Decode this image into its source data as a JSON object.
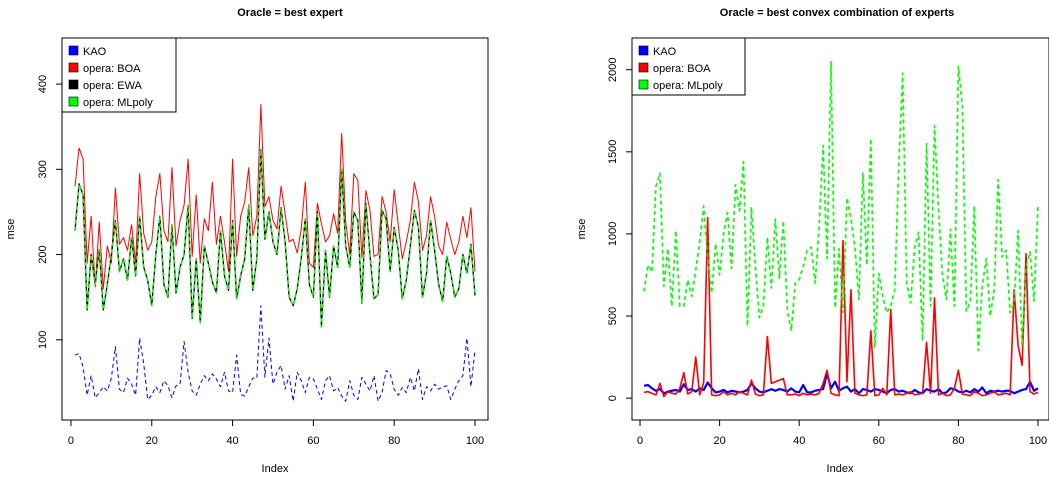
{
  "chart_data": [
    {
      "type": "line",
      "title": "Oracle = best expert",
      "xlabel": "Index",
      "ylabel": "mse",
      "xticks": [
        "0",
        "20",
        "40",
        "60",
        "80",
        "100"
      ],
      "yticks": [
        "100",
        "200",
        "300",
        "400"
      ],
      "xlim": [
        1,
        100
      ],
      "ylim": [
        20,
        440
      ],
      "legend_position": "top-left",
      "series": [
        {
          "name": "KAO",
          "color": "#0000ff",
          "dash": "dashed",
          "width": 1,
          "values": [
            82,
            84,
            68,
            35,
            58,
            32,
            38,
            45,
            40,
            55,
            92,
            42,
            38,
            55,
            48,
            35,
            102,
            72,
            30,
            35,
            45,
            38,
            52,
            46,
            32,
            46,
            48,
            98,
            62,
            40,
            35,
            48,
            58,
            52,
            60,
            54,
            45,
            62,
            40,
            38,
            82,
            36,
            34,
            45,
            55,
            55,
            140,
            56,
            102,
            48,
            62,
            70,
            42,
            58,
            28,
            62,
            52,
            38,
            56,
            54,
            42,
            30,
            52,
            58,
            40,
            44,
            34,
            28,
            52,
            35,
            30,
            56,
            48,
            40,
            58,
            28,
            38,
            64,
            60,
            42,
            35,
            44,
            38,
            56,
            40,
            66,
            30,
            45,
            40,
            48,
            42,
            45,
            46,
            30,
            42,
            52,
            58,
            102,
            45,
            88
          ]
        },
        {
          "name": "opera: BOA",
          "color": "#ff0000",
          "dash": "solid",
          "width": 1,
          "values": [
            280,
            325,
            312,
            190,
            245,
            162,
            238,
            160,
            210,
            190,
            278,
            212,
            220,
            205,
            235,
            190,
            295,
            225,
            205,
            215,
            268,
            295,
            228,
            215,
            302,
            210,
            240,
            258,
            312,
            198,
            270,
            190,
            242,
            228,
            285,
            212,
            245,
            215,
            180,
            312,
            198,
            245,
            262,
            302,
            222,
            245,
            376,
            256,
            268,
            240,
            230,
            280,
            248,
            215,
            218,
            202,
            230,
            285,
            190,
            185,
            260,
            236,
            215,
            222,
            248,
            225,
            342,
            238,
            200,
            295,
            287,
            196,
            275,
            252,
            198,
            200,
            268,
            250,
            215,
            276,
            235,
            195,
            215,
            240,
            285,
            262,
            205,
            222,
            268,
            245,
            210,
            200,
            238,
            218,
            200,
            215,
            245,
            220,
            255,
            180
          ]
        },
        {
          "name": "opera: EWA",
          "color": "#000000",
          "dash": "solid",
          "width": 1.3,
          "values": [
            228,
            283,
            270,
            135,
            200,
            165,
            206,
            135,
            165,
            200,
            240,
            180,
            195,
            170,
            220,
            175,
            245,
            185,
            170,
            140,
            200,
            245,
            165,
            150,
            235,
            155,
            185,
            200,
            258,
            125,
            195,
            120,
            210,
            190,
            168,
            155,
            228,
            175,
            158,
            240,
            148,
            175,
            195,
            258,
            158,
            195,
            323,
            218,
            250,
            215,
            200,
            255,
            215,
            150,
            140,
            160,
            196,
            242,
            165,
            150,
            250,
            115,
            205,
            150,
            210,
            185,
            300,
            210,
            185,
            250,
            240,
            143,
            260,
            200,
            148,
            153,
            252,
            242,
            180,
            232,
            205,
            148,
            170,
            210,
            252,
            232,
            150,
            178,
            240,
            205,
            165,
            145,
            198,
            178,
            150,
            160,
            200,
            178,
            212,
            152
          ]
        },
        {
          "name": "opera: MLpoly",
          "color": "#00ff00",
          "dash": "dashed",
          "width": 1.3,
          "values": [
            228,
            283,
            270,
            135,
            200,
            165,
            206,
            135,
            165,
            200,
            240,
            180,
            195,
            170,
            220,
            175,
            245,
            185,
            170,
            140,
            200,
            245,
            165,
            150,
            235,
            155,
            185,
            200,
            258,
            125,
            195,
            120,
            210,
            190,
            168,
            155,
            228,
            175,
            158,
            240,
            148,
            175,
            195,
            258,
            158,
            195,
            323,
            218,
            250,
            215,
            200,
            255,
            215,
            150,
            140,
            160,
            196,
            242,
            165,
            150,
            250,
            115,
            205,
            150,
            210,
            185,
            300,
            210,
            185,
            250,
            240,
            143,
            260,
            200,
            148,
            153,
            252,
            242,
            180,
            232,
            205,
            148,
            170,
            210,
            252,
            232,
            150,
            178,
            240,
            205,
            165,
            145,
            198,
            178,
            150,
            160,
            200,
            178,
            212,
            152
          ]
        }
      ]
    },
    {
      "type": "line",
      "title": "Oracle = best convex combination of experts",
      "xlabel": "Index",
      "ylabel": "mse",
      "xticks": [
        "0",
        "20",
        "40",
        "60",
        "80",
        "100"
      ],
      "yticks": [
        "0",
        "500",
        "1000",
        "1500",
        "2000"
      ],
      "xlim": [
        1,
        100
      ],
      "ylim": [
        -60,
        2120
      ],
      "legend_position": "top-left",
      "series": [
        {
          "name": "KAO",
          "color": "#0000ff",
          "dash": "solid",
          "width": 2.2,
          "values": [
            75,
            80,
            60,
            45,
            55,
            30,
            40,
            45,
            50,
            40,
            85,
            50,
            55,
            40,
            60,
            50,
            95,
            60,
            35,
            40,
            50,
            35,
            45,
            40,
            35,
            40,
            50,
            90,
            60,
            40,
            35,
            45,
            55,
            45,
            55,
            50,
            40,
            60,
            40,
            35,
            80,
            35,
            35,
            45,
            50,
            55,
            150,
            60,
            100,
            45,
            60,
            70,
            40,
            55,
            30,
            55,
            50,
            40,
            55,
            50,
            40,
            30,
            50,
            55,
            40,
            45,
            35,
            30,
            50,
            35,
            30,
            55,
            45,
            40,
            55,
            30,
            35,
            60,
            55,
            40,
            35,
            45,
            35,
            55,
            40,
            65,
            30,
            45,
            40,
            45,
            40,
            45,
            45,
            30,
            40,
            50,
            55,
            100,
            45,
            60
          ]
        },
        {
          "name": "opera: BOA",
          "color": "#ff0000",
          "dash": "solid",
          "width": 1.6,
          "values": [
            35,
            40,
            30,
            20,
            90,
            10,
            40,
            30,
            25,
            60,
            155,
            25,
            40,
            250,
            20,
            95,
            1100,
            20,
            15,
            20,
            40,
            20,
            30,
            20,
            40,
            30,
            20,
            110,
            25,
            15,
            20,
            375,
            90,
            100,
            110,
            120,
            20,
            20,
            25,
            15,
            30,
            20,
            25,
            20,
            30,
            90,
            170,
            30,
            20,
            15,
            960,
            100,
            660,
            30,
            20,
            15,
            20,
            410,
            15,
            20,
            60,
            20,
            540,
            20,
            25,
            20,
            30,
            40,
            20,
            25,
            30,
            340,
            30,
            610,
            20,
            30,
            15,
            20,
            60,
            170,
            25,
            20,
            15,
            40,
            30,
            15,
            20,
            30,
            40,
            20,
            25,
            30,
            20,
            660,
            320,
            200,
            880,
            40,
            25,
            35
          ]
        },
        {
          "name": "opera: MLpoly",
          "color": "#00ff00",
          "dash": "dashed",
          "width": 1.6,
          "values": [
            650,
            810,
            770,
            1290,
            1370,
            680,
            910,
            560,
            1020,
            560,
            560,
            720,
            620,
            780,
            950,
            1170,
            860,
            640,
            940,
            750,
            1000,
            1130,
            790,
            1300,
            1140,
            1440,
            440,
            1160,
            800,
            490,
            560,
            980,
            670,
            1090,
            730,
            1080,
            540,
            410,
            700,
            720,
            800,
            900,
            920,
            700,
            1040,
            1540,
            850,
            2050,
            550,
            910,
            520,
            1220,
            1090,
            920,
            600,
            1370,
            810,
            1580,
            310,
            760,
            620,
            520,
            560,
            660,
            1400,
            1980,
            700,
            580,
            920,
            1010,
            350,
            1550,
            560,
            1660,
            1150,
            750,
            600,
            1030,
            560,
            2020,
            1780,
            530,
            590,
            1170,
            290,
            680,
            850,
            500,
            660,
            1330,
            860,
            900,
            520,
            580,
            1020,
            320,
            800,
            890,
            590,
            1170
          ]
        }
      ]
    }
  ]
}
